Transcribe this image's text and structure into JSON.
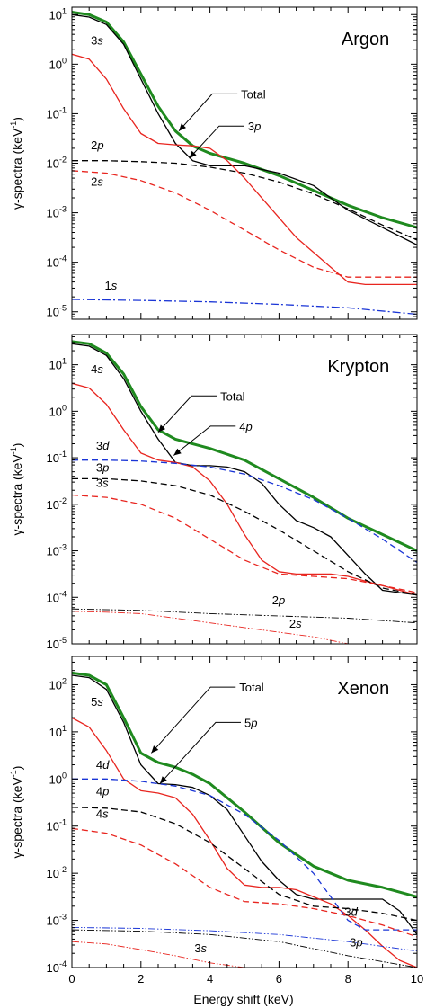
{
  "xlabel": "Energy shift (keV)",
  "ylabel_prefix": "γ-spectra (keV",
  "ylabel_exp": "-1",
  "ylabel_suffix": ")",
  "colors": {
    "total": "#1f8a1f",
    "np": "#000000",
    "ns": "#e8251f",
    "nd": "#1a35d6",
    "axis": "#000000"
  },
  "chart_data": [
    {
      "type": "line",
      "title": "Argon",
      "xlim": [
        0,
        10
      ],
      "ylim_exp": [
        -5.15,
        1.15
      ],
      "yscale": "log",
      "x_ticks": [
        0,
        2,
        4,
        6,
        8,
        10
      ],
      "y_ticks_exp": [
        -5,
        -4,
        -3,
        -2,
        -1,
        0,
        1
      ],
      "series": [
        {
          "name": "Total",
          "color": "total",
          "style": "solid",
          "width": 3,
          "x": [
            0,
            0.5,
            1,
            1.5,
            2,
            2.5,
            3,
            3.5,
            4,
            5,
            6,
            7,
            8,
            9,
            10
          ],
          "log10": [
            1.05,
            1.0,
            0.85,
            0.45,
            -0.2,
            -0.85,
            -1.35,
            -1.65,
            -1.8,
            -2.0,
            -2.25,
            -2.55,
            -2.85,
            -3.1,
            -3.3
          ]
        },
        {
          "name": "3p",
          "color": "np",
          "style": "solid",
          "width": 1.3,
          "x": [
            0,
            0.5,
            1,
            1.5,
            2,
            2.5,
            3,
            3.5,
            4,
            4.5,
            5,
            6,
            7,
            7.5,
            8,
            9,
            10
          ],
          "log10": [
            1.0,
            0.95,
            0.8,
            0.4,
            -0.3,
            -1.0,
            -1.6,
            -1.95,
            -2.05,
            -2.05,
            -2.05,
            -2.2,
            -2.45,
            -2.7,
            -2.95,
            -3.3,
            -3.65
          ]
        },
        {
          "name": "3s",
          "color": "ns",
          "style": "solid",
          "width": 1.3,
          "x": [
            0,
            0.5,
            1,
            1.5,
            2,
            2.5,
            3,
            3.5,
            4,
            4.5,
            5,
            5.5,
            6,
            6.5,
            7,
            7.5,
            8,
            8.5,
            9,
            10
          ],
          "log10": [
            0.2,
            0.1,
            -0.3,
            -0.9,
            -1.4,
            -1.6,
            -1.63,
            -1.65,
            -1.7,
            -1.95,
            -2.3,
            -2.7,
            -3.1,
            -3.5,
            -3.8,
            -4.1,
            -4.4,
            -4.45,
            -4.45,
            -4.45
          ]
        },
        {
          "name": "2p",
          "color": "np",
          "style": "dashed",
          "width": 1.3,
          "x": [
            0,
            1,
            2,
            3,
            4,
            5,
            6,
            7,
            8,
            9,
            10
          ],
          "log10": [
            -1.95,
            -1.95,
            -1.97,
            -2.0,
            -2.08,
            -2.2,
            -2.38,
            -2.62,
            -2.92,
            -3.25,
            -3.55
          ]
        },
        {
          "name": "2s",
          "color": "ns",
          "style": "dashed",
          "width": 1.3,
          "x": [
            0,
            1,
            2,
            3,
            4,
            5,
            6,
            7,
            8,
            8.5,
            9,
            10
          ],
          "log10": [
            -2.15,
            -2.2,
            -2.35,
            -2.6,
            -2.95,
            -3.35,
            -3.75,
            -4.1,
            -4.3,
            -4.3,
            -4.3,
            -4.3
          ]
        },
        {
          "name": "1s",
          "color": "nd",
          "style": "dashdot",
          "width": 1.3,
          "x": [
            0,
            2,
            4,
            6,
            8,
            10
          ],
          "log10": [
            -4.75,
            -4.77,
            -4.8,
            -4.85,
            -4.92,
            -5.05
          ]
        }
      ],
      "labels": [
        {
          "text": "3s",
          "x": 0.55,
          "log10": 0.4
        },
        {
          "text": "2p",
          "x": 0.55,
          "log10": -1.72
        },
        {
          "text": "2s",
          "x": 0.55,
          "log10": -2.45
        },
        {
          "text": "1s",
          "x": 0.95,
          "log10": -4.55
        }
      ],
      "callouts": [
        {
          "text": "Total",
          "point_x": 3.1,
          "point_log10": -1.35,
          "text_x": 4.9,
          "text_log10": -0.6
        },
        {
          "text": "3p",
          "point_x": 3.4,
          "point_log10": -1.9,
          "text_x": 5.1,
          "text_log10": -1.25
        }
      ]
    },
    {
      "type": "line",
      "title": "Krypton",
      "xlim": [
        0,
        10
      ],
      "ylim_exp": [
        -5.0,
        1.65
      ],
      "yscale": "log",
      "x_ticks": [
        0,
        2,
        4,
        6,
        8,
        10
      ],
      "y_ticks_exp": [
        -5,
        -4,
        -3,
        -2,
        -1,
        0,
        1
      ],
      "series": [
        {
          "name": "Total",
          "color": "total",
          "style": "solid",
          "width": 3,
          "x": [
            0,
            0.5,
            1,
            1.5,
            2,
            2.5,
            3,
            3.5,
            4,
            5,
            6,
            7,
            8,
            9,
            10
          ],
          "log10": [
            1.5,
            1.45,
            1.25,
            0.8,
            0.1,
            -0.4,
            -0.6,
            -0.7,
            -0.8,
            -1.05,
            -1.45,
            -1.85,
            -2.3,
            -2.65,
            -3.0
          ]
        },
        {
          "name": "4p",
          "color": "np",
          "style": "solid",
          "width": 1.3,
          "x": [
            0,
            0.5,
            1,
            1.5,
            2,
            2.5,
            3,
            3.5,
            4,
            4.5,
            5,
            5.5,
            6,
            6.5,
            7,
            7.5,
            8,
            8.5,
            9,
            9.5,
            10
          ],
          "log10": [
            1.45,
            1.4,
            1.2,
            0.7,
            0.0,
            -0.6,
            -1.1,
            -1.17,
            -1.17,
            -1.2,
            -1.3,
            -1.55,
            -2.0,
            -2.35,
            -2.5,
            -2.7,
            -3.1,
            -3.5,
            -3.85,
            -3.9,
            -3.95
          ]
        },
        {
          "name": "4s",
          "color": "ns",
          "style": "solid",
          "width": 1.3,
          "x": [
            0,
            0.5,
            1,
            1.5,
            2,
            2.5,
            3,
            3.5,
            4,
            4.5,
            5,
            5.5,
            6,
            6.5,
            7,
            7.5,
            8,
            8.5,
            9,
            9.5,
            10
          ],
          "log10": [
            0.6,
            0.5,
            0.15,
            -0.4,
            -0.9,
            -1.05,
            -1.1,
            -1.2,
            -1.5,
            -2.0,
            -2.65,
            -3.2,
            -3.45,
            -3.5,
            -3.5,
            -3.5,
            -3.55,
            -3.65,
            -3.75,
            -3.85,
            -3.95
          ]
        },
        {
          "name": "3d",
          "color": "nd",
          "style": "dashed",
          "width": 1.3,
          "x": [
            0,
            1,
            2,
            3,
            4,
            5,
            6,
            7,
            8,
            9,
            10
          ],
          "log10": [
            -1.05,
            -1.05,
            -1.07,
            -1.12,
            -1.2,
            -1.35,
            -1.6,
            -1.9,
            -2.3,
            -2.75,
            -3.25
          ]
        },
        {
          "name": "3p",
          "color": "np",
          "style": "dashed",
          "width": 1.3,
          "x": [
            0,
            1,
            2,
            3,
            4,
            5,
            6,
            7,
            8,
            9,
            10
          ],
          "log10": [
            -1.45,
            -1.45,
            -1.5,
            -1.6,
            -1.8,
            -2.15,
            -2.55,
            -3.0,
            -3.45,
            -3.8,
            -3.95
          ]
        },
        {
          "name": "3s",
          "color": "ns",
          "style": "dashed",
          "width": 1.3,
          "x": [
            0,
            1,
            2,
            3,
            4,
            5,
            6,
            7,
            8,
            9,
            10
          ],
          "log10": [
            -1.8,
            -1.85,
            -2.0,
            -2.3,
            -2.75,
            -3.2,
            -3.5,
            -3.55,
            -3.6,
            -3.75,
            -3.9
          ]
        },
        {
          "name": "2p",
          "color": "np",
          "style": "dashdotdot",
          "width": 0.9,
          "x": [
            0,
            2,
            4,
            6,
            8,
            10
          ],
          "log10": [
            -4.25,
            -4.28,
            -4.35,
            -4.4,
            -4.45,
            -4.55
          ]
        },
        {
          "name": "2s",
          "color": "ns",
          "style": "dashdotdot",
          "width": 0.9,
          "x": [
            0,
            1,
            2,
            3,
            4,
            5,
            6,
            7,
            8
          ],
          "log10": [
            -4.3,
            -4.32,
            -4.35,
            -4.45,
            -4.55,
            -4.65,
            -4.75,
            -4.85,
            -5.0
          ]
        }
      ],
      "labels": [
        {
          "text": "4s",
          "x": 0.55,
          "log10": 0.82
        },
        {
          "text": "3d",
          "x": 0.7,
          "log10": -0.82
        },
        {
          "text": "3p",
          "x": 0.7,
          "log10": -1.3
        },
        {
          "text": "3s",
          "x": 0.7,
          "log10": -1.63
        },
        {
          "text": "2p",
          "x": 5.8,
          "log10": -4.15
        },
        {
          "text": "2s",
          "x": 6.3,
          "log10": -4.65
        }
      ],
      "callouts": [
        {
          "text": "Total",
          "point_x": 2.5,
          "point_log10": -0.45,
          "text_x": 4.3,
          "text_log10": 0.33
        },
        {
          "text": "4p",
          "point_x": 2.95,
          "point_log10": -0.95,
          "text_x": 4.85,
          "text_log10": -0.32
        }
      ]
    },
    {
      "type": "line",
      "title": "Xenon",
      "xlim": [
        0,
        10
      ],
      "ylim_exp": [
        -4.0,
        2.6
      ],
      "yscale": "log",
      "x_ticks": [
        0,
        2,
        4,
        6,
        8,
        10
      ],
      "y_ticks_exp": [
        -4,
        -3,
        -2,
        -1,
        0,
        1,
        2
      ],
      "series": [
        {
          "name": "Total",
          "color": "total",
          "style": "solid",
          "width": 3,
          "x": [
            0,
            0.5,
            1,
            1.5,
            2,
            2.5,
            3,
            3.5,
            4,
            5,
            6,
            7,
            8,
            9,
            10
          ],
          "log10": [
            2.25,
            2.2,
            2.0,
            1.3,
            0.55,
            0.35,
            0.25,
            0.1,
            -0.1,
            -0.7,
            -1.35,
            -1.85,
            -2.15,
            -2.3,
            -2.5
          ]
        },
        {
          "name": "5p",
          "color": "np",
          "style": "solid",
          "width": 1.3,
          "x": [
            0,
            0.5,
            1,
            1.5,
            2,
            2.5,
            3,
            3.5,
            4,
            4.5,
            5,
            5.5,
            6,
            6.5,
            7,
            8,
            9,
            9.5,
            10
          ],
          "log10": [
            2.2,
            2.15,
            1.9,
            1.2,
            0.3,
            -0.1,
            -0.12,
            -0.18,
            -0.35,
            -0.65,
            -1.2,
            -1.75,
            -2.15,
            -2.45,
            -2.55,
            -2.55,
            -2.55,
            -2.8,
            -3.3
          ]
        },
        {
          "name": "5s",
          "color": "ns",
          "style": "solid",
          "width": 1.3,
          "x": [
            0,
            0.5,
            1,
            1.5,
            2,
            2.5,
            3,
            3.5,
            4,
            4.5,
            5,
            5.5,
            6,
            6.5,
            7,
            7.5,
            8,
            8.5,
            9,
            9.5,
            10
          ],
          "log10": [
            1.3,
            1.1,
            0.6,
            0.0,
            -0.25,
            -0.3,
            -0.4,
            -0.75,
            -1.3,
            -1.9,
            -2.25,
            -2.3,
            -2.3,
            -2.35,
            -2.5,
            -2.65,
            -2.9,
            -3.2,
            -3.55,
            -3.85,
            -4.0
          ]
        },
        {
          "name": "4d",
          "color": "nd",
          "style": "dashed",
          "width": 1.3,
          "x": [
            0,
            1,
            2,
            3,
            4,
            5,
            6,
            7,
            7.5,
            8,
            8.5,
            9,
            10
          ],
          "log10": [
            0.0,
            0.0,
            -0.05,
            -0.15,
            -0.35,
            -0.75,
            -1.3,
            -2.0,
            -2.5,
            -3.0,
            -3.2,
            -3.2,
            -3.2
          ]
        },
        {
          "name": "4p",
          "color": "np",
          "style": "dashed",
          "width": 1.3,
          "x": [
            0,
            1,
            2,
            3,
            4,
            5,
            6,
            7,
            8,
            9,
            10
          ],
          "log10": [
            -0.6,
            -0.62,
            -0.7,
            -0.95,
            -1.35,
            -1.9,
            -2.45,
            -2.7,
            -2.75,
            -2.85,
            -3.0
          ]
        },
        {
          "name": "4s",
          "color": "ns",
          "style": "dashed",
          "width": 1.3,
          "x": [
            0,
            1,
            2,
            3,
            4,
            5,
            6,
            7,
            8,
            9,
            10
          ],
          "log10": [
            -1.05,
            -1.15,
            -1.4,
            -1.8,
            -2.3,
            -2.6,
            -2.65,
            -2.75,
            -2.9,
            -3.1,
            -3.35
          ]
        },
        {
          "name": "3d",
          "color": "nd",
          "style": "dashdotdot",
          "width": 0.9,
          "x": [
            0,
            2,
            4,
            6,
            8,
            10
          ],
          "log10": [
            -3.15,
            -3.17,
            -3.22,
            -3.3,
            -3.45,
            -3.65
          ]
        },
        {
          "name": "3p",
          "color": "np",
          "style": "dashdotdot",
          "width": 0.9,
          "x": [
            0,
            2,
            4,
            6,
            8,
            10
          ],
          "log10": [
            -3.2,
            -3.23,
            -3.3,
            -3.45,
            -3.75,
            -4.0
          ]
        },
        {
          "name": "3s",
          "color": "ns",
          "style": "dashdotdot",
          "width": 0.9,
          "x": [
            0,
            1,
            2,
            3,
            4,
            5
          ],
          "log10": [
            -3.45,
            -3.5,
            -3.62,
            -3.75,
            -3.9,
            -4.0
          ]
        }
      ],
      "labels": [
        {
          "text": "5s",
          "x": 0.55,
          "log10": 1.55
        },
        {
          "text": "4d",
          "x": 0.7,
          "log10": 0.22
        },
        {
          "text": "4p",
          "x": 0.7,
          "log10": -0.35
        },
        {
          "text": "4s",
          "x": 0.7,
          "log10": -0.82
        },
        {
          "text": "3d",
          "x": 7.9,
          "log10": -2.9
        },
        {
          "text": "3p",
          "x": 8.05,
          "log10": -3.55
        },
        {
          "text": "3s",
          "x": 3.55,
          "log10": -3.68
        }
      ],
      "callouts": [
        {
          "text": "Total",
          "point_x": 2.3,
          "point_log10": 0.55,
          "text_x": 4.85,
          "text_log10": 1.95
        },
        {
          "text": "5p",
          "point_x": 2.55,
          "point_log10": -0.1,
          "text_x": 5.0,
          "text_log10": 1.2
        }
      ]
    }
  ]
}
